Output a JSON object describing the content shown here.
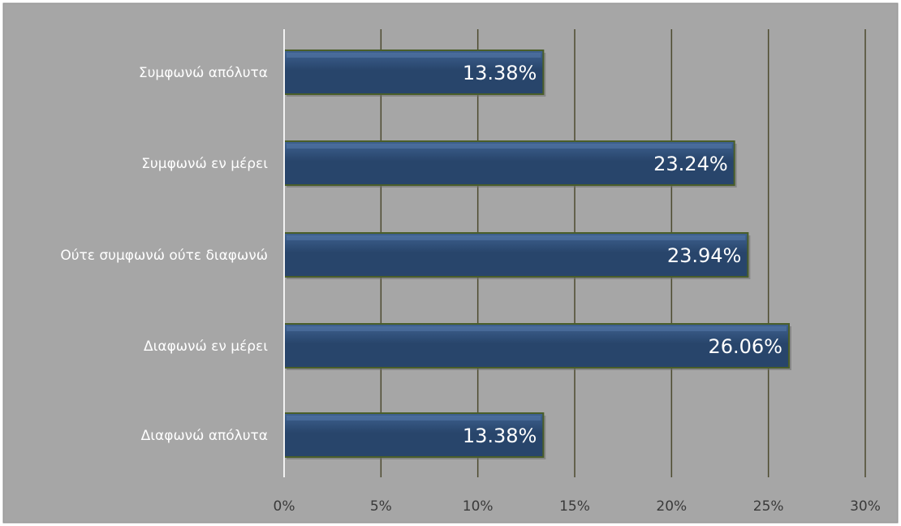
{
  "chart_data": {
    "type": "bar",
    "orientation": "horizontal",
    "title": "",
    "xlabel": "",
    "ylabel": "",
    "categories": [
      "Συμφωνώ απόλυτα",
      "Συμφωνώ εν μέρει",
      "Ούτε συμφωνώ ούτε διαφωνώ",
      "Διαφωνώ εν μέρει",
      "Διαφωνώ απόλυτα"
    ],
    "values": [
      13.38,
      23.24,
      23.94,
      26.06,
      13.38
    ],
    "data_labels": [
      "13.38%",
      "23.24%",
      "23.94%",
      "26.06%",
      "13.38%"
    ],
    "xlim": [
      0,
      30
    ],
    "x_ticks": [
      0,
      5,
      10,
      15,
      20,
      25,
      30
    ],
    "x_tick_labels": [
      "0%",
      "5%",
      "10%",
      "15%",
      "20%",
      "25%",
      "30%"
    ],
    "grid": "vertical",
    "legend": "none",
    "colors": {
      "background": "#a6a6a6",
      "plot_border": "#8f8f8f",
      "bar_fill": "#28456b",
      "bar_highlight": "#3f6291",
      "bar_edge": "#4a5e2a",
      "gridline": "#4d4a2e",
      "axis_line": "#f2f2f2",
      "category_text": "#ffffff",
      "tick_text": "#3a3a3a",
      "data_label_text": "#ffffff"
    }
  }
}
